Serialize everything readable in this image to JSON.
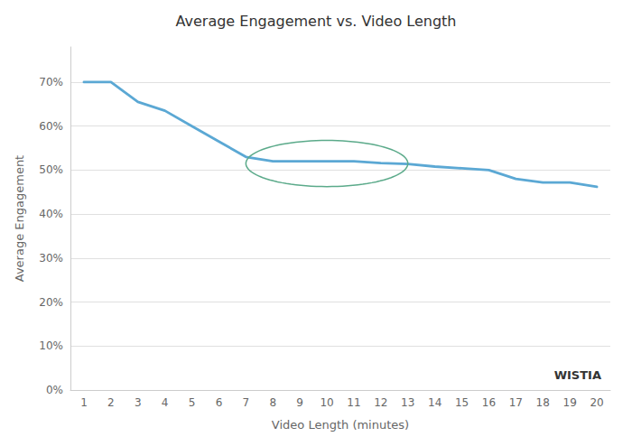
{
  "chart_data": {
    "type": "line",
    "title": "Average Engagement vs. Video Length",
    "xlabel": "Video Length (minutes)",
    "ylabel": "Average Engagement",
    "x": [
      1,
      2,
      3,
      4,
      5,
      6,
      7,
      8,
      9,
      10,
      11,
      12,
      13,
      14,
      15,
      16,
      17,
      18,
      19,
      20
    ],
    "values": [
      0.7,
      0.7,
      0.655,
      0.635,
      0.6,
      0.565,
      0.53,
      0.52,
      0.52,
      0.52,
      0.52,
      0.516,
      0.514,
      0.508,
      0.504,
      0.5,
      0.48,
      0.472,
      0.472,
      0.462
    ],
    "color": "#5BA8D4",
    "xlim": [
      0.5,
      20.5
    ],
    "xticks": [
      1,
      2,
      3,
      4,
      5,
      6,
      7,
      8,
      9,
      10,
      11,
      12,
      13,
      14,
      15,
      16,
      17,
      18,
      19,
      20
    ],
    "ylim": [
      0.0,
      0.78
    ],
    "yticks": [
      {
        "value": 0.0,
        "label": "0%"
      },
      {
        "value": 0.1,
        "label": "10%"
      },
      {
        "value": 0.2,
        "label": "20%"
      },
      {
        "value": 0.3,
        "label": "30%"
      },
      {
        "value": 0.4,
        "label": "40%"
      },
      {
        "value": 0.5,
        "label": "50%"
      },
      {
        "value": 0.6,
        "label": "60%"
      },
      {
        "value": 0.7,
        "label": "70%"
      }
    ],
    "grid": "y",
    "ellipse": {
      "center_x": 10.0,
      "center_y": 0.515,
      "width": 6.0,
      "height": 0.105,
      "color": "#5BAA8A"
    },
    "annotations": [
      {
        "text": "WISTIA",
        "color": "#333333"
      }
    ]
  }
}
